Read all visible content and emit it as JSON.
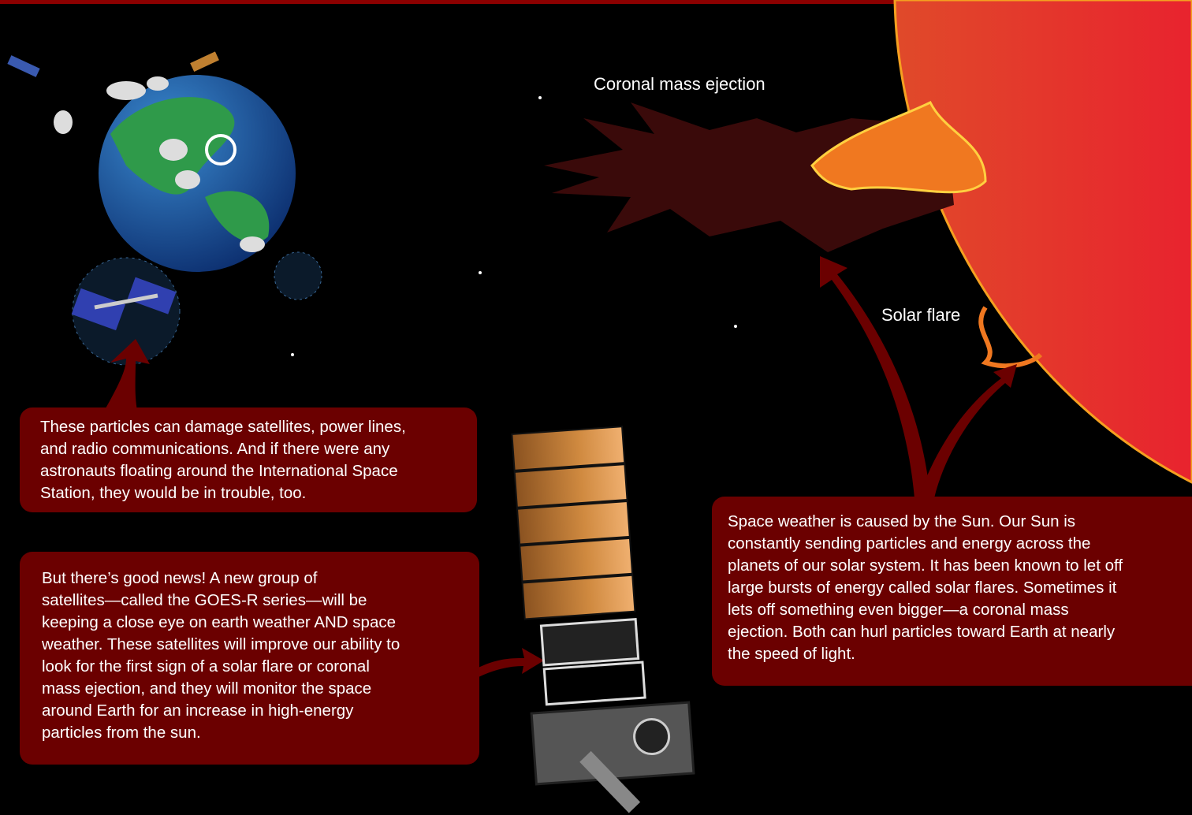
{
  "labels": {
    "cme": "Coronal mass ejection",
    "flare": "Solar flare"
  },
  "boxes": [
    {
      "lines": [
        "These particles can damage satellites, power lines,",
        "and radio communications. And if there were any",
        "astronauts floating around the International Space",
        "Station, they would be in trouble, too."
      ]
    },
    {
      "lines": [
        "But there’s good news! A new group of",
        "satellites—called the GOES-R series—will be",
        "keeping a close eye on earth weather AND space",
        "weather.  These satellites will improve our ability to",
        "look for the first sign of a solar flare or coronal",
        "mass ejection, and they will monitor the space",
        "around Earth for an increase in high-energy",
        "particles from the sun."
      ]
    },
    {
      "lines": [
        "Space weather is caused by the Sun. Our Sun is",
        "constantly sending particles and energy across the",
        "planets of our solar system. It has been known to let off",
        "large bursts of energy called solar flares. Sometimes it",
        "lets off something even bigger—a coronal mass",
        "ejection. Both can hurl particles toward Earth at nearly",
        "the speed of light."
      ]
    }
  ]
}
